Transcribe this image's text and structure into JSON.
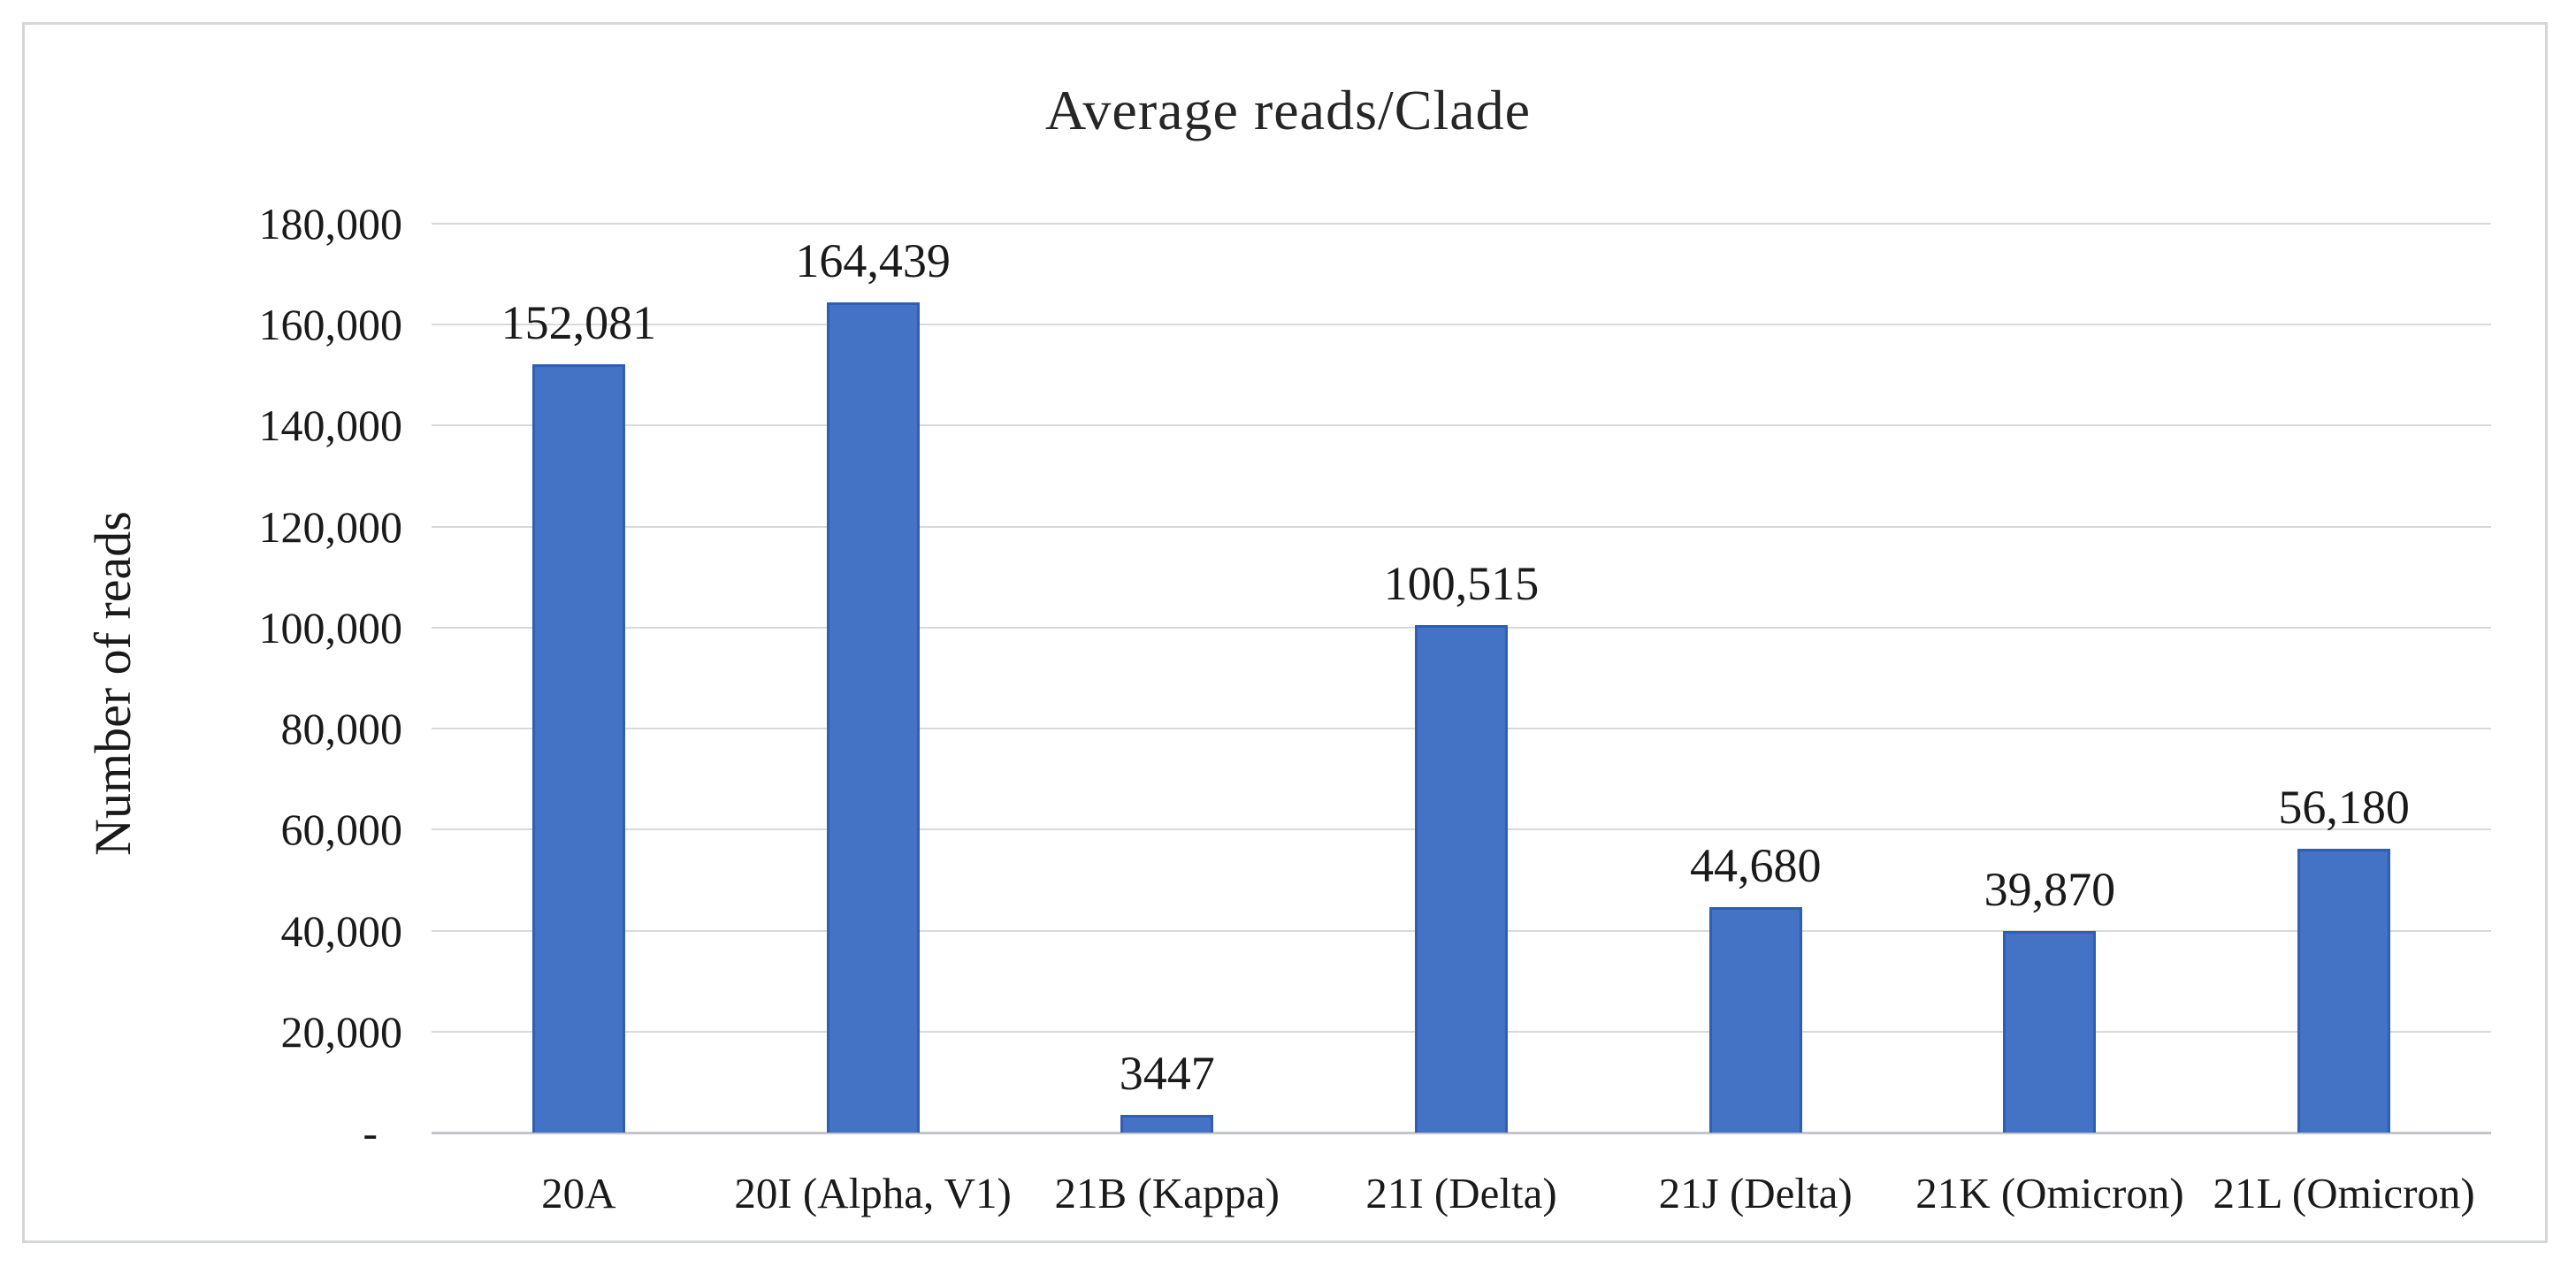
{
  "figure": {
    "title": "Average reads/Clade",
    "y_axis_title": "Number of reads"
  },
  "chart_data": {
    "type": "bar",
    "title": "Average reads/Clade",
    "xlabel": "",
    "ylabel": "Number of reads",
    "categories": [
      "20A",
      "20I (Alpha, V1)",
      "21B (Kappa)",
      "21I (Delta)",
      "21J (Delta)",
      "21K (Omicron)",
      "21L (Omicron)"
    ],
    "values": [
      152081,
      164439,
      3447,
      100515,
      44680,
      39870,
      56180
    ],
    "value_labels": [
      "152,081",
      "164,439",
      "3447",
      "100,515",
      "44,680",
      "39,870",
      "56,180"
    ],
    "y_ticks": [
      {
        "value": 0,
        "label": "-"
      },
      {
        "value": 20000,
        "label": "20,000"
      },
      {
        "value": 40000,
        "label": "40,000"
      },
      {
        "value": 60000,
        "label": "60,000"
      },
      {
        "value": 80000,
        "label": "80,000"
      },
      {
        "value": 100000,
        "label": "100,000"
      },
      {
        "value": 120000,
        "label": "120,000"
      },
      {
        "value": 140000,
        "label": "140,000"
      },
      {
        "value": 160000,
        "label": "160,000"
      },
      {
        "value": 180000,
        "label": "180,000"
      }
    ],
    "ylim": [
      0,
      180000
    ],
    "grid": true,
    "legend": "none",
    "bar_color": "#4472C4",
    "bar_border_color": "#2F5FB3",
    "gridline_color": "#D9D9D9"
  }
}
